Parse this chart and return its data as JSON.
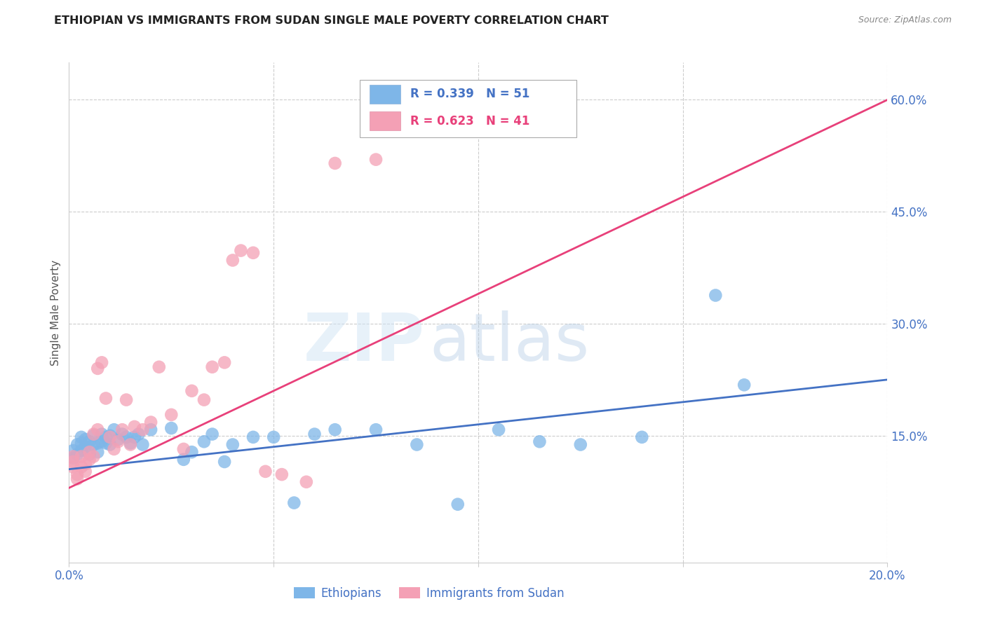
{
  "title": "ETHIOPIAN VS IMMIGRANTS FROM SUDAN SINGLE MALE POVERTY CORRELATION CHART",
  "source": "Source: ZipAtlas.com",
  "ylabel": "Single Male Poverty",
  "xlim": [
    0.0,
    0.2
  ],
  "ylim": [
    -0.02,
    0.65
  ],
  "xticks": [
    0.0,
    0.05,
    0.1,
    0.15,
    0.2
  ],
  "xtick_labels": [
    "0.0%",
    "",
    "",
    "",
    "20.0%"
  ],
  "yticks_right": [
    0.15,
    0.3,
    0.45,
    0.6
  ],
  "ytick_right_labels": [
    "15.0%",
    "30.0%",
    "45.0%",
    "60.0%"
  ],
  "grid_color": "#cccccc",
  "background_color": "#ffffff",
  "ethiopians_color": "#7EB6E8",
  "sudan_color": "#F4A0B5",
  "blue_line_color": "#4472C4",
  "pink_line_color": "#E8407A",
  "dash_line_color": "#aaaaaa",
  "R_ethiopians": 0.339,
  "N_ethiopians": 51,
  "R_sudan": 0.623,
  "N_sudan": 41,
  "legend_label_1": "Ethiopians",
  "legend_label_2": "Immigrants from Sudan",
  "watermark_zip": "ZIP",
  "watermark_atlas": "atlas",
  "blue_trend_x0": 0.0,
  "blue_trend_y0": 0.105,
  "blue_trend_x1": 0.2,
  "blue_trend_y1": 0.225,
  "pink_trend_x0": 0.0,
  "pink_trend_y0": 0.08,
  "pink_trend_x1": 0.2,
  "pink_trend_y1": 0.6,
  "ethiopians_x": [
    0.001,
    0.001,
    0.002,
    0.002,
    0.003,
    0.003,
    0.003,
    0.004,
    0.004,
    0.005,
    0.005,
    0.006,
    0.006,
    0.007,
    0.007,
    0.008,
    0.008,
    0.009,
    0.009,
    0.01,
    0.01,
    0.011,
    0.012,
    0.013,
    0.014,
    0.015,
    0.016,
    0.017,
    0.018,
    0.02,
    0.025,
    0.028,
    0.03,
    0.033,
    0.035,
    0.038,
    0.04,
    0.045,
    0.05,
    0.055,
    0.06,
    0.065,
    0.075,
    0.085,
    0.095,
    0.105,
    0.115,
    0.125,
    0.14,
    0.158,
    0.165
  ],
  "ethiopians_y": [
    0.12,
    0.13,
    0.125,
    0.138,
    0.13,
    0.14,
    0.148,
    0.135,
    0.145,
    0.125,
    0.142,
    0.138,
    0.15,
    0.128,
    0.14,
    0.142,
    0.152,
    0.14,
    0.148,
    0.138,
    0.15,
    0.158,
    0.145,
    0.152,
    0.148,
    0.14,
    0.148,
    0.152,
    0.138,
    0.158,
    0.16,
    0.118,
    0.128,
    0.142,
    0.152,
    0.115,
    0.138,
    0.148,
    0.148,
    0.06,
    0.152,
    0.158,
    0.158,
    0.138,
    0.058,
    0.158,
    0.142,
    0.138,
    0.148,
    0.338,
    0.218
  ],
  "sudan_x": [
    0.001,
    0.001,
    0.001,
    0.002,
    0.002,
    0.003,
    0.003,
    0.004,
    0.004,
    0.005,
    0.005,
    0.006,
    0.006,
    0.007,
    0.007,
    0.008,
    0.009,
    0.01,
    0.011,
    0.012,
    0.013,
    0.014,
    0.015,
    0.016,
    0.018,
    0.02,
    0.022,
    0.025,
    0.028,
    0.03,
    0.033,
    0.035,
    0.038,
    0.04,
    0.042,
    0.045,
    0.048,
    0.052,
    0.058,
    0.065,
    0.075
  ],
  "sudan_y": [
    0.108,
    0.115,
    0.122,
    0.092,
    0.098,
    0.108,
    0.122,
    0.112,
    0.102,
    0.128,
    0.118,
    0.122,
    0.152,
    0.158,
    0.24,
    0.248,
    0.2,
    0.148,
    0.132,
    0.142,
    0.158,
    0.198,
    0.138,
    0.162,
    0.158,
    0.168,
    0.242,
    0.178,
    0.132,
    0.21,
    0.198,
    0.242,
    0.248,
    0.385,
    0.398,
    0.395,
    0.102,
    0.098,
    0.088,
    0.515,
    0.52
  ]
}
